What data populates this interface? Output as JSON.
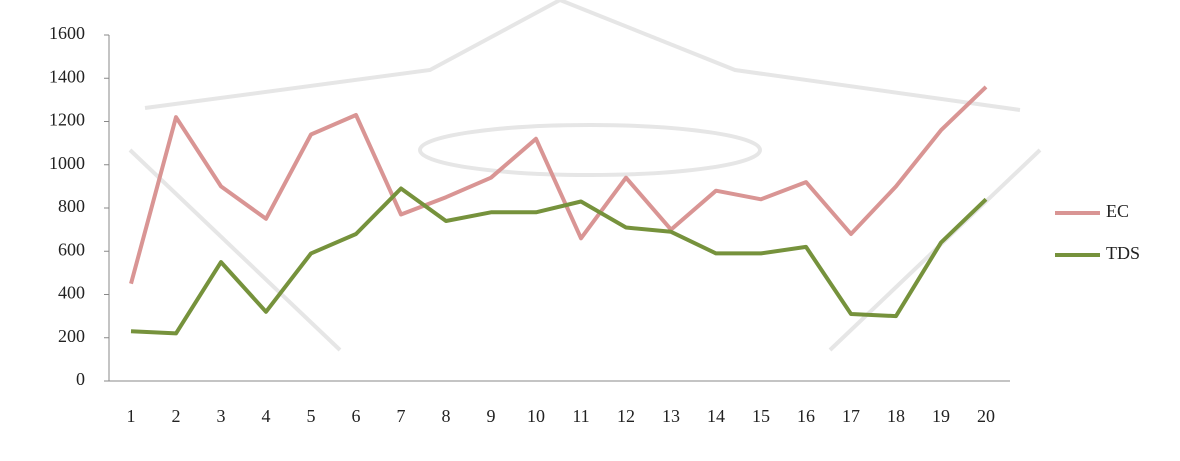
{
  "chart_data": {
    "type": "line",
    "categories": [
      "1",
      "2",
      "3",
      "4",
      "5",
      "6",
      "7",
      "8",
      "9",
      "10",
      "11",
      "12",
      "13",
      "14",
      "15",
      "16",
      "17",
      "18",
      "19",
      "20"
    ],
    "series": [
      {
        "name": "EC",
        "color": "#d99594",
        "values": [
          450,
          1220,
          900,
          750,
          1140,
          1230,
          770,
          850,
          940,
          1120,
          660,
          940,
          700,
          880,
          840,
          920,
          680,
          900,
          1160,
          1360
        ]
      },
      {
        "name": "TDS",
        "color": "#76923c",
        "values": [
          230,
          220,
          550,
          320,
          590,
          680,
          890,
          740,
          780,
          780,
          830,
          710,
          690,
          590,
          590,
          620,
          310,
          300,
          640,
          840
        ]
      }
    ],
    "ylim": [
      0,
      1600
    ],
    "yticks": [
      0,
      200,
      400,
      600,
      800,
      1000,
      1200,
      1400,
      1600
    ],
    "legend": "right"
  }
}
